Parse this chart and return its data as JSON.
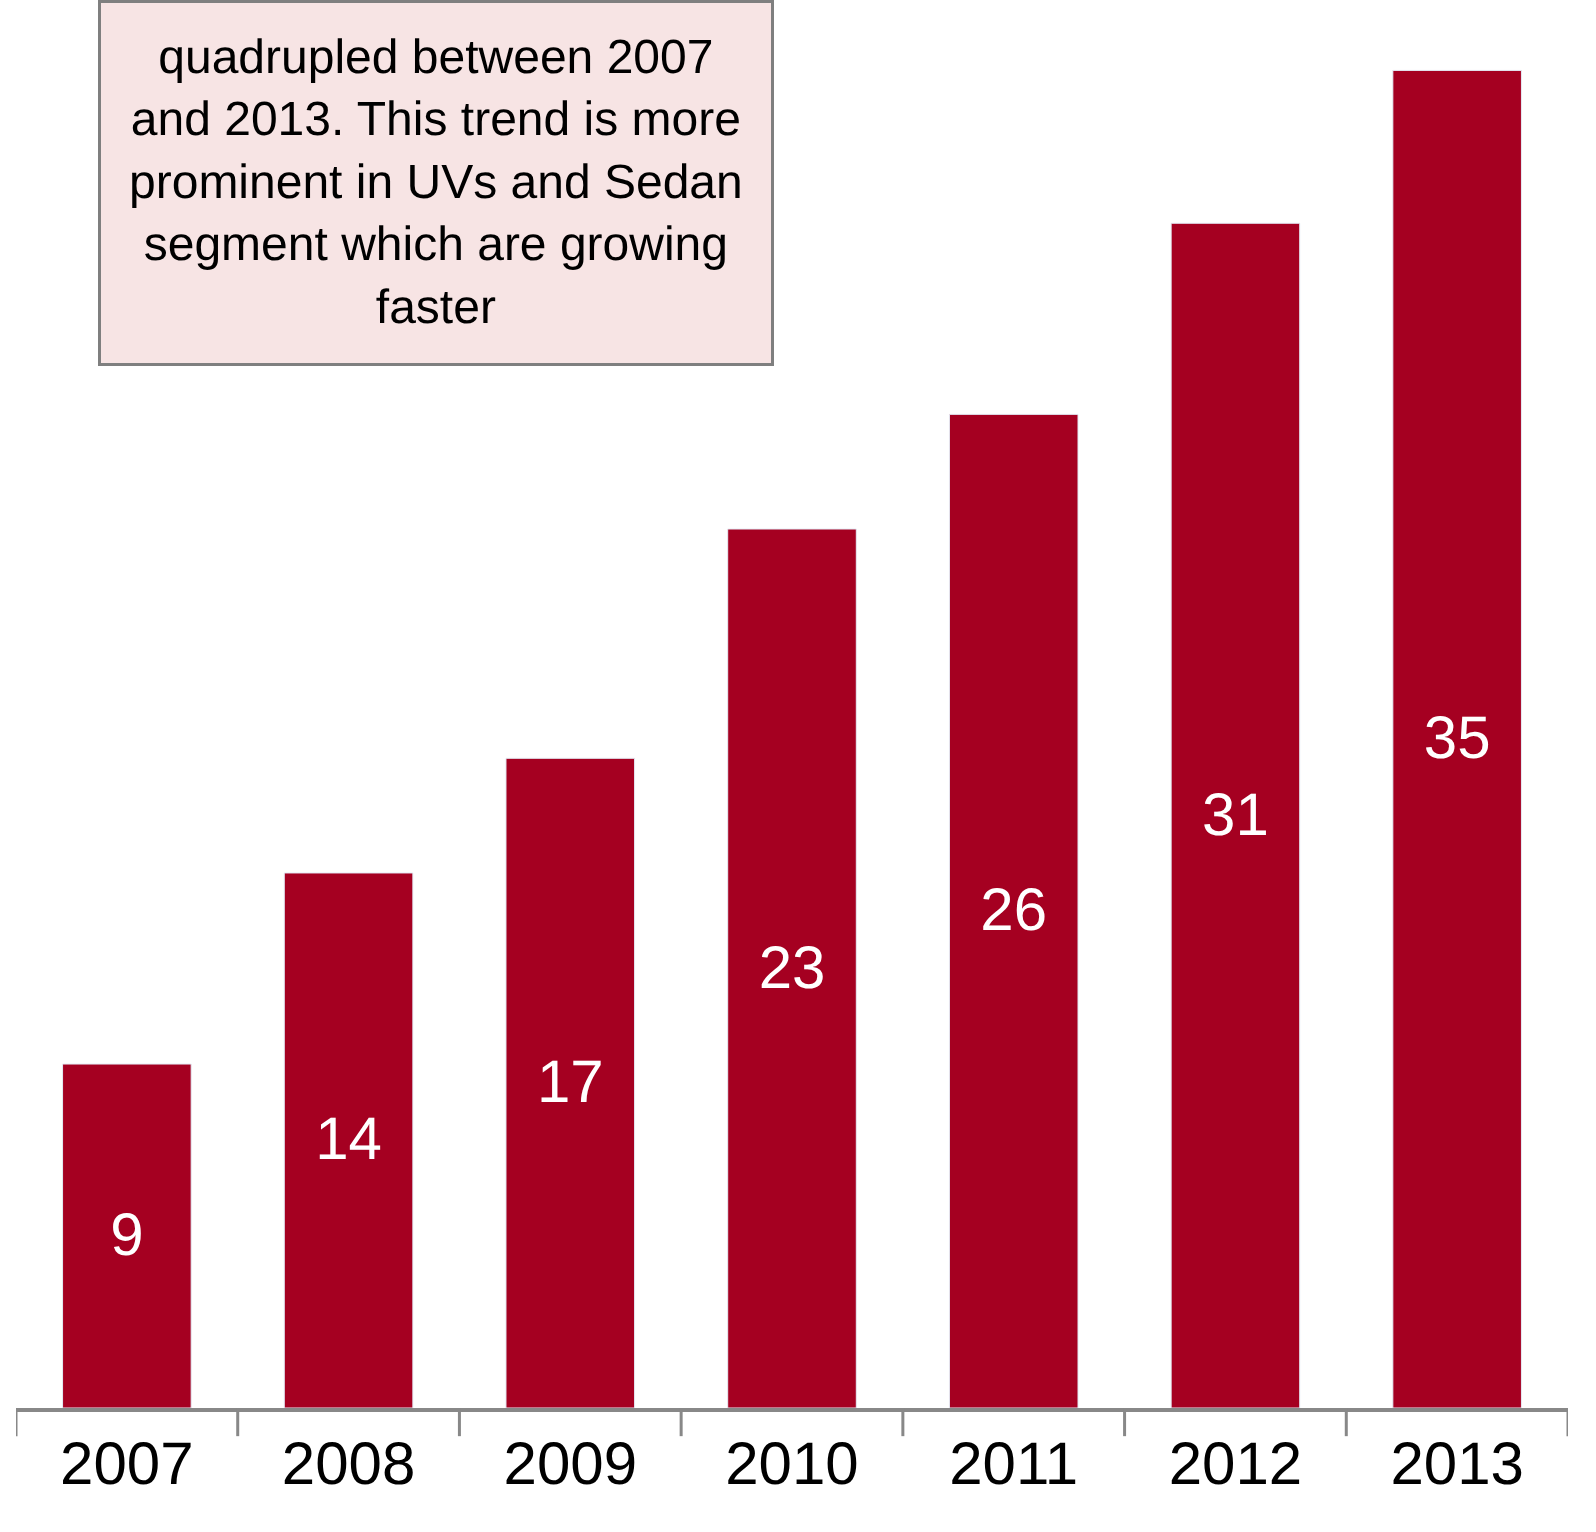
{
  "chart_data": {
    "type": "bar",
    "categories": [
      "2007",
      "2008",
      "2009",
      "2010",
      "2011",
      "2012",
      "2013"
    ],
    "values": [
      9,
      14,
      17,
      23,
      26,
      31,
      35
    ],
    "color": "#a50021",
    "data_labels": true,
    "tick_labels": "x",
    "annotations": [
      "quadrupled between 2007\nand 2013. This trend is more\nprominent in UVs and Sedan\nsegment which are growing\nfaster"
    ]
  }
}
